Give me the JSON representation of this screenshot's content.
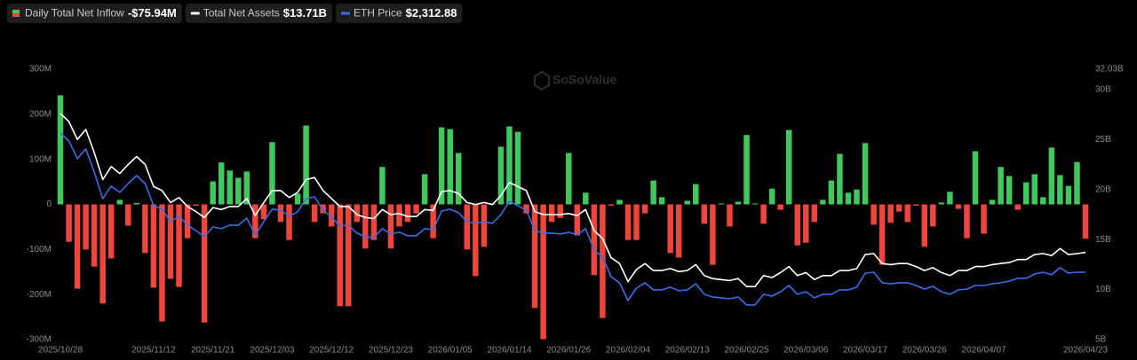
{
  "chart_data": {
    "type": "bar-line",
    "watermark": "SoSoValue",
    "categories": [
      "2025/10/28",
      null,
      null,
      null,
      null,
      null,
      null,
      null,
      null,
      null,
      null,
      "2025/11/12",
      null,
      null,
      null,
      null,
      null,
      null,
      "2025/11/21",
      null,
      null,
      null,
      null,
      null,
      null,
      "2025/12/03",
      null,
      null,
      null,
      null,
      null,
      null,
      "2025/12/12",
      null,
      null,
      null,
      null,
      null,
      null,
      "2025/12/23",
      null,
      null,
      null,
      null,
      null,
      null,
      "2026/01/05",
      null,
      null,
      null,
      null,
      null,
      null,
      "2026/01/14",
      null,
      null,
      null,
      null,
      null,
      null,
      "2026/01/26",
      null,
      null,
      null,
      null,
      null,
      null,
      "2026/02/04",
      null,
      null,
      null,
      null,
      null,
      null,
      "2026/02/13",
      null,
      null,
      null,
      null,
      null,
      null,
      "2026/02/25",
      null,
      null,
      null,
      null,
      null,
      null,
      "2026/03/06",
      null,
      null,
      null,
      null,
      null,
      null,
      "2026/03/17",
      null,
      null,
      null,
      null,
      null,
      null,
      "2026/03/26",
      null,
      null,
      null,
      null,
      null,
      null,
      "2026/04/07",
      null,
      null,
      null,
      null,
      null,
      null,
      null,
      null,
      null,
      null,
      null,
      "2026/04/23"
    ],
    "series": [
      {
        "name": "Daily Total Net Inflow",
        "headline": "-$75.94M",
        "color": "#3fc95c",
        "negative_color": "#f0453a",
        "values": [
          242,
          -83,
          -187,
          -100,
          -138,
          -220,
          -120,
          10,
          -47,
          3,
          -108,
          -185,
          -260,
          -165,
          -183,
          -75,
          -3,
          -262,
          51,
          93,
          75,
          59,
          73,
          -75,
          -33,
          138,
          -39,
          -79,
          24,
          175,
          -39,
          -20,
          -49,
          -226,
          -226,
          -39,
          -98,
          -79,
          83,
          -98,
          -49,
          -39,
          -20,
          67,
          -75,
          171,
          167,
          114,
          -100,
          -159,
          -94,
          2,
          128,
          173,
          161,
          -20,
          -230,
          -299,
          -39,
          -30,
          114,
          -69,
          26,
          -157,
          -252,
          -3,
          10,
          -79,
          -79,
          -20,
          53,
          16,
          -108,
          -118,
          8,
          45,
          -43,
          -134,
          2,
          -49,
          6,
          154,
          2,
          -43,
          35,
          -12,
          165,
          -91,
          -85,
          -39,
          10,
          53,
          112,
          26,
          33,
          136,
          -45,
          -134,
          -41,
          -16,
          -39,
          -3,
          -94,
          -49,
          4,
          28,
          -10,
          -75,
          118,
          -65,
          10,
          83,
          63,
          -12,
          49,
          67,
          16,
          126,
          65,
          41,
          94,
          -75.94
        ]
      },
      {
        "name": "Total Net Assets",
        "headline": "$13.71B",
        "color": "#ffffff",
        "axis": "y2",
        "values": [
          27.6,
          26.8,
          25.0,
          26.0,
          23.7,
          21.0,
          22.3,
          21.6,
          22.5,
          23.3,
          22.5,
          20.3,
          19.9,
          18.7,
          19.2,
          18.3,
          17.8,
          17.2,
          18.2,
          18.0,
          18.3,
          18.3,
          19.1,
          17.4,
          18.7,
          19.9,
          19.9,
          19.2,
          19.7,
          21.0,
          21.2,
          19.9,
          19.1,
          18.3,
          18.3,
          17.5,
          17.2,
          17.1,
          18.0,
          17.5,
          17.6,
          17.3,
          17.3,
          18.0,
          17.9,
          19.8,
          19.9,
          19.6,
          18.7,
          18.5,
          18.7,
          18.5,
          19.4,
          20.7,
          20.3,
          19.9,
          17.8,
          17.5,
          17.5,
          17.5,
          17.6,
          17.4,
          18.0,
          15.9,
          15.1,
          13.2,
          12.6,
          10.8,
          12.0,
          12.6,
          11.9,
          11.9,
          12.1,
          11.8,
          11.9,
          12.5,
          11.4,
          11.1,
          11.0,
          10.9,
          11.1,
          10.3,
          10.3,
          11.4,
          11.2,
          11.7,
          12.3,
          11.4,
          11.7,
          11.0,
          11.4,
          11.4,
          11.9,
          11.9,
          12.1,
          13.5,
          13.6,
          12.6,
          12.5,
          12.6,
          12.6,
          12.3,
          11.9,
          12.2,
          11.7,
          11.4,
          11.9,
          11.9,
          12.3,
          12.3,
          12.5,
          12.6,
          12.7,
          13.0,
          13.0,
          13.5,
          13.6,
          13.4,
          14.1,
          13.5,
          13.6,
          13.71
        ]
      },
      {
        "name": "ETH Price",
        "headline": "$2,312.88",
        "color": "#3a6ee8",
        "axis": "y3",
        "values": [
          4004,
          3907,
          3692,
          3810,
          3530,
          3207,
          3358,
          3282,
          3390,
          3487,
          3390,
          3121,
          3078,
          2927,
          2992,
          2884,
          2819,
          2744,
          2862,
          2841,
          2884,
          2884,
          2970,
          2765,
          2927,
          3078,
          3067,
          2992,
          3045,
          3207,
          3228,
          3067,
          2981,
          2873,
          2884,
          2787,
          2744,
          2733,
          2841,
          2776,
          2798,
          2755,
          2755,
          2841,
          2830,
          3056,
          3078,
          3035,
          2927,
          2905,
          2927,
          2905,
          3013,
          3175,
          3121,
          3067,
          2819,
          2787,
          2787,
          2776,
          2798,
          2765,
          2841,
          2582,
          2496,
          2259,
          2184,
          1968,
          2119,
          2184,
          2098,
          2098,
          2130,
          2087,
          2098,
          2173,
          2044,
          2011,
          2001,
          1990,
          2011,
          1915,
          1915,
          2044,
          2022,
          2076,
          2151,
          2044,
          2076,
          2001,
          2044,
          2044,
          2098,
          2098,
          2130,
          2302,
          2313,
          2184,
          2173,
          2184,
          2184,
          2151,
          2108,
          2141,
          2076,
          2044,
          2098,
          2108,
          2151,
          2151,
          2173,
          2184,
          2205,
          2238,
          2238,
          2291,
          2313,
          2281,
          2367,
          2302,
          2313,
          2312.88
        ]
      }
    ],
    "ylim": [
      -300,
      300
    ],
    "yticks": [
      {
        "value": -300,
        "label": "-300M"
      },
      {
        "value": -200,
        "label": "-200M"
      },
      {
        "value": -100,
        "label": "-100M"
      },
      0,
      {
        "value": 100,
        "label": "100M"
      },
      {
        "value": 200,
        "label": "200M"
      },
      {
        "value": 300,
        "label": "300M"
      }
    ],
    "y2lim": [
      5,
      32.03
    ],
    "y2ticks": [
      {
        "value": 5,
        "label": "5B"
      },
      {
        "value": 10,
        "label": "10B"
      },
      {
        "value": 15,
        "label": "15B"
      },
      {
        "value": 20,
        "label": "20B"
      },
      {
        "value": 25,
        "label": "25B"
      },
      {
        "value": 30,
        "label": "30B"
      },
      {
        "value": 32.03,
        "label": "32.03B"
      }
    ],
    "y3lim": [
      1494,
      4779
    ],
    "grid": false
  }
}
